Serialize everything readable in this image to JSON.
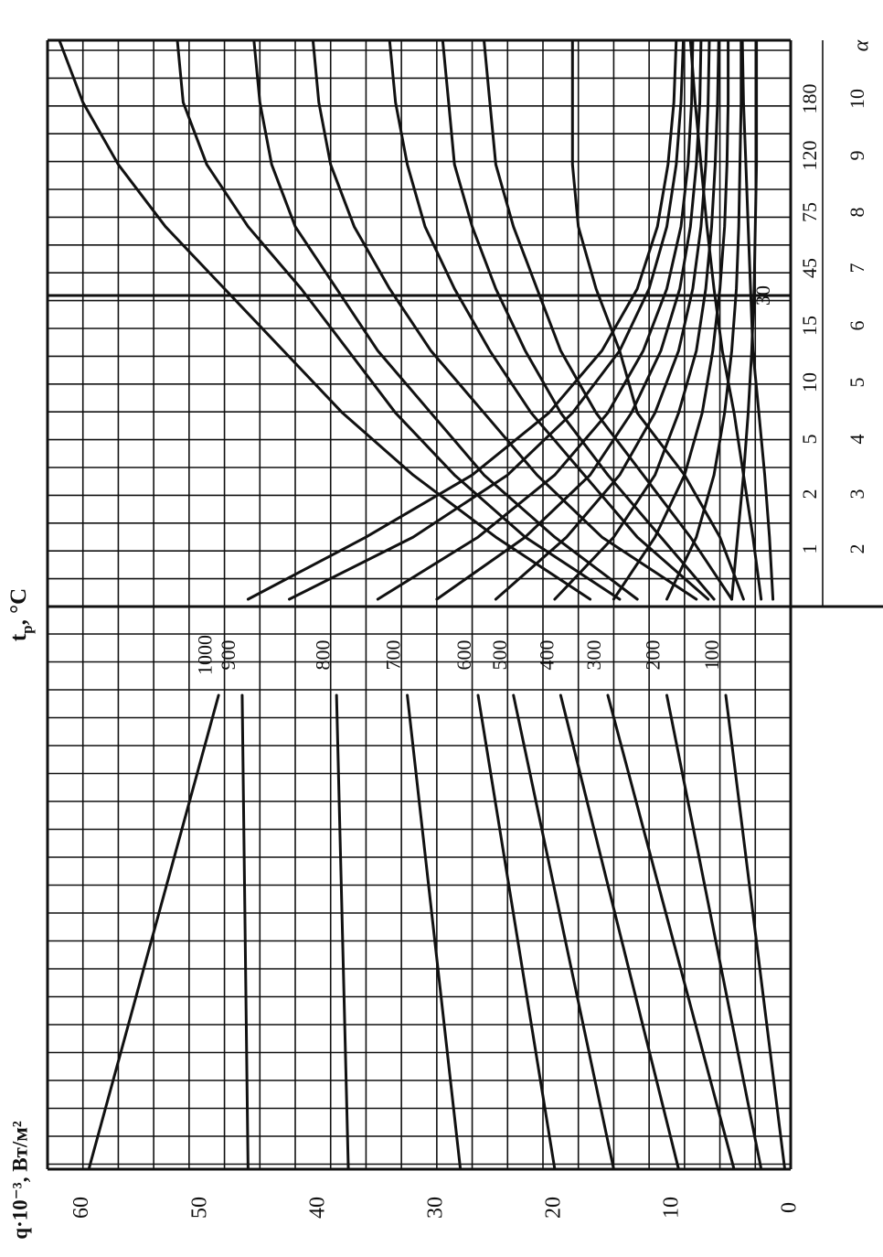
{
  "chart_data": [
    {
      "type": "line",
      "panel": "left",
      "ylabel": "q·10⁻³, Вт/м²",
      "yticks": [
        0,
        10,
        20,
        30,
        40,
        50,
        60
      ],
      "ylim": [
        0,
        63
      ],
      "x_unit_label": "t",
      "x_unit_subscript": "р",
      "x_unit_suffix": ", °C",
      "grid": true,
      "series": [
        {
          "name": "100",
          "values_left_to_right": [
            0.5,
            5.5
          ]
        },
        {
          "name": "200",
          "values_left_to_right": [
            2.5,
            10.5
          ]
        },
        {
          "name": "300",
          "values_left_to_right": [
            4.8,
            15.5
          ]
        },
        {
          "name": "400",
          "values_left_to_right": [
            9.5,
            19.5
          ]
        },
        {
          "name": "500",
          "values_left_to_right": [
            15,
            23.5
          ]
        },
        {
          "name": "600",
          "values_left_to_right": [
            20,
            26.5
          ]
        },
        {
          "name": "700",
          "values_left_to_right": [
            28,
            32.5
          ]
        },
        {
          "name": "800",
          "values_left_to_right": [
            37.5,
            38.5
          ]
        },
        {
          "name": "900",
          "values_left_to_right": [
            46,
            46.5
          ]
        },
        {
          "name": "1000",
          "values_left_to_right": [
            59.5,
            48.5
          ]
        }
      ]
    },
    {
      "type": "line",
      "panel": "right",
      "xlabel": "α",
      "xticks_bottom": [
        "2",
        "3",
        "4",
        "5",
        "6",
        "7",
        "8",
        "9",
        "10"
      ],
      "xticks_top": [
        "1",
        "2",
        "5",
        "10",
        "15",
        "45",
        "75",
        "120",
        "180"
      ],
      "marker_label": "30",
      "grid": true,
      "series_rising": [
        {
          "name": "100",
          "values": [
            1.5,
            1.8,
            2.2,
            2.7,
            3.2,
            3.4,
            3.6,
            3.8,
            4.0,
            4.1
          ]
        },
        {
          "name": "200",
          "values": [
            2.5,
            3.2,
            4.0,
            4.8,
            5.8,
            6.5,
            7.1,
            7.6,
            8.1,
            8.5
          ]
        },
        {
          "name": "300",
          "values": [
            4.0,
            6.0,
            9.0,
            13.0,
            14.5,
            16.5,
            18.0,
            18.5,
            18.5,
            18.5
          ]
        },
        {
          "name": "400",
          "values": [
            5.0,
            8.5,
            12.5,
            16.5,
            19.5,
            21.5,
            23.5,
            25.0,
            25.5,
            26.0
          ]
        },
        {
          "name": "500",
          "values": [
            6.5,
            11.0,
            15.5,
            19.5,
            22.5,
            25.0,
            27.0,
            28.5,
            29.0,
            29.5
          ]
        },
        {
          "name": "600",
          "values": [
            7.0,
            13.0,
            17.5,
            22.0,
            25.5,
            28.5,
            31.0,
            32.5,
            33.5,
            34.0
          ]
        },
        {
          "name": "700",
          "values": [
            8.0,
            16.0,
            21.5,
            26.0,
            30.5,
            34.0,
            37.0,
            39.0,
            40.0,
            40.5
          ]
        },
        {
          "name": "800",
          "values": [
            13.0,
            20.0,
            26.0,
            30.5,
            35.0,
            38.5,
            42.0,
            44.0,
            45.0,
            45.5
          ]
        },
        {
          "name": "900",
          "values": [
            14.5,
            22.5,
            28.5,
            33.5,
            37.5,
            41.5,
            46.0,
            49.5,
            51.5,
            52.0
          ]
        },
        {
          "name": "1000",
          "values": [
            17.0,
            25.0,
            32.0,
            38.0,
            43.0,
            48.0,
            53.0,
            57.0,
            60.0,
            62.0
          ]
        }
      ],
      "series_falling": [
        {
          "name": "100",
          "values": [
            5.0,
            4.5,
            4.0,
            3.6,
            3.3,
            3.1,
            3.0,
            2.9,
            2.9,
            2.9
          ]
        },
        {
          "name": "200",
          "values": [
            10.5,
            8.0,
            6.5,
            5.6,
            5.0,
            4.6,
            4.4,
            4.3,
            4.2,
            4.2
          ]
        },
        {
          "name": "300",
          "values": [
            15.0,
            11.5,
            9.0,
            7.5,
            6.6,
            6.0,
            5.6,
            5.4,
            5.3,
            5.3
          ]
        },
        {
          "name": "400",
          "values": [
            20.0,
            15.0,
            11.5,
            9.5,
            8.0,
            7.2,
            6.7,
            6.4,
            6.2,
            6.1
          ]
        },
        {
          "name": "500",
          "values": [
            25.0,
            19.0,
            14.5,
            11.5,
            9.5,
            8.3,
            7.6,
            7.2,
            7.0,
            6.9
          ]
        },
        {
          "name": "600",
          "values": [
            30.0,
            22.5,
            17.0,
            13.5,
            11.0,
            9.4,
            8.5,
            8.0,
            7.7,
            7.6
          ]
        },
        {
          "name": "700",
          "values": [
            35.0,
            26.5,
            20.0,
            15.5,
            12.5,
            10.5,
            9.3,
            8.7,
            8.4,
            8.3
          ]
        },
        {
          "name": "800",
          "values": [
            42.5,
            32.0,
            24.0,
            18.5,
            14.5,
            12.0,
            10.5,
            9.7,
            9.3,
            9.1
          ]
        },
        {
          "name": "900",
          "values": [
            46.0,
            36.0,
            27.0,
            20.5,
            16.0,
            13.0,
            11.3,
            10.4,
            9.9,
            9.7
          ]
        }
      ]
    }
  ]
}
